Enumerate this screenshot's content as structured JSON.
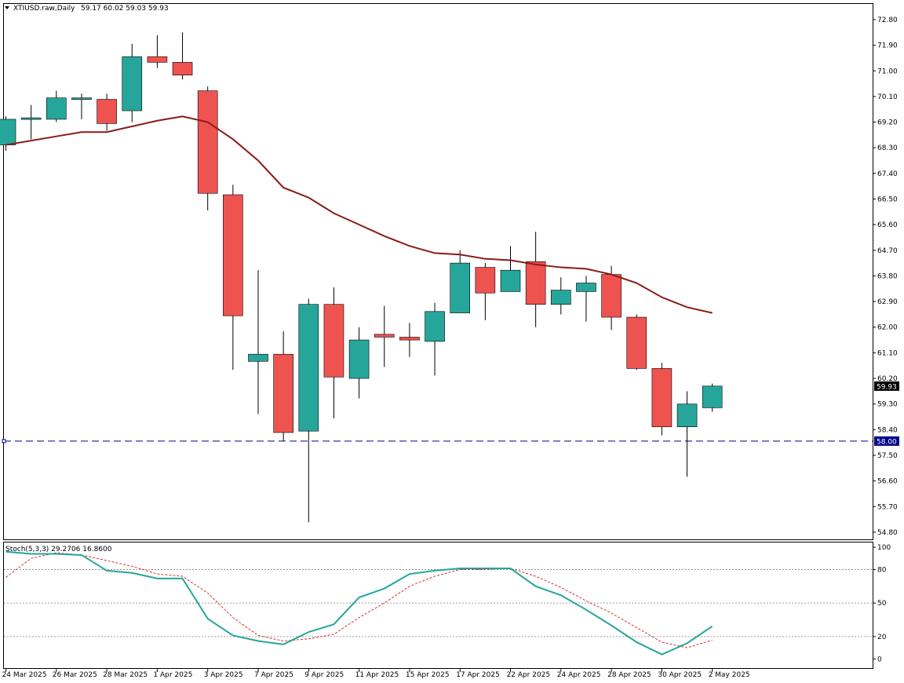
{
  "colors": {
    "background": "#ffffff",
    "up_candle": "#26a69a",
    "down_candle": "#ef5350",
    "wick": "#000000",
    "moving_average": "#8b1a1a",
    "level_line": "#00008b",
    "stoch_main": "#26a69a",
    "stoch_signal": "#d32f2f",
    "grid_level": "#808080",
    "axis": "#000000",
    "price_label_bg": "#000000",
    "level_label_bg": "#00008b"
  },
  "header": {
    "symbol_line": "XTIUSD.raw,Daily",
    "ohlc_line": "59.17 60.02 59.03 59.93",
    "menu_icon": "triangle-down-icon"
  },
  "stoch": {
    "label": "Stoch(5,3,3) 29.2706 16.8600"
  },
  "chart_data": [
    {
      "type": "candlestick",
      "symbol": "XTIUSD.raw",
      "timeframe": "Daily",
      "y_ticks": [
        "54.80",
        "55.70",
        "56.60",
        "57.50",
        "58.40",
        "59.30",
        "60.20",
        "61.10",
        "62.00",
        "62.90",
        "63.80",
        "64.70",
        "65.60",
        "66.50",
        "67.40",
        "68.30",
        "69.20",
        "70.10",
        "71.00",
        "71.90",
        "72.80"
      ],
      "ylim": [
        54.55,
        73.35
      ],
      "x_tick_labels": [
        "24 Mar 2025",
        "26 Mar 2025",
        "28 Mar 2025",
        "1 Apr 2025",
        "3 Apr 2025",
        "7 Apr 2025",
        "9 Apr 2025",
        "11 Apr 2025",
        "15 Apr 2025",
        "17 Apr 2025",
        "22 Apr 2025",
        "24 Apr 2025",
        "28 Apr 2025",
        "30 Apr 2025",
        "2 May 2025"
      ],
      "last_price_label": "59.93",
      "horizontal_level": 58.0,
      "horizontal_level_label": "58.00",
      "candles": [
        {
          "o": 68.4,
          "h": 69.4,
          "l": 68.2,
          "c": 69.3
        },
        {
          "o": 69.3,
          "h": 69.8,
          "l": 68.6,
          "c": 69.35
        },
        {
          "o": 69.3,
          "h": 70.3,
          "l": 69.2,
          "c": 70.05
        },
        {
          "o": 70.0,
          "h": 70.2,
          "l": 69.3,
          "c": 70.05
        },
        {
          "o": 70.0,
          "h": 70.2,
          "l": 68.9,
          "c": 69.15
        },
        {
          "o": 69.6,
          "h": 71.95,
          "l": 69.2,
          "c": 71.5
        },
        {
          "o": 71.5,
          "h": 72.25,
          "l": 71.1,
          "c": 71.3
        },
        {
          "o": 71.3,
          "h": 72.35,
          "l": 70.7,
          "c": 70.85
        },
        {
          "o": 70.3,
          "h": 70.45,
          "l": 66.1,
          "c": 66.7
        },
        {
          "o": 66.65,
          "h": 67.0,
          "l": 60.5,
          "c": 62.4
        },
        {
          "o": 60.8,
          "h": 64.0,
          "l": 58.95,
          "c": 61.05
        },
        {
          "o": 61.05,
          "h": 61.85,
          "l": 58.0,
          "c": 58.3
        },
        {
          "o": 58.35,
          "h": 63.0,
          "l": 55.15,
          "c": 62.8
        },
        {
          "o": 62.8,
          "h": 63.4,
          "l": 58.8,
          "c": 60.25
        },
        {
          "o": 60.2,
          "h": 62.0,
          "l": 59.5,
          "c": 61.55
        },
        {
          "o": 61.75,
          "h": 62.75,
          "l": 60.6,
          "c": 61.65
        },
        {
          "o": 61.65,
          "h": 62.15,
          "l": 60.95,
          "c": 61.55
        },
        {
          "o": 61.5,
          "h": 62.85,
          "l": 60.3,
          "c": 62.55
        },
        {
          "o": 62.5,
          "h": 64.7,
          "l": 62.5,
          "c": 64.25
        },
        {
          "o": 64.1,
          "h": 64.25,
          "l": 62.25,
          "c": 63.2
        },
        {
          "o": 63.25,
          "h": 64.85,
          "l": 63.25,
          "c": 64.0
        },
        {
          "o": 64.3,
          "h": 65.35,
          "l": 62.0,
          "c": 62.8
        },
        {
          "o": 62.8,
          "h": 63.75,
          "l": 62.45,
          "c": 63.3
        },
        {
          "o": 63.25,
          "h": 63.8,
          "l": 62.2,
          "c": 63.55
        },
        {
          "o": 63.85,
          "h": 64.15,
          "l": 61.9,
          "c": 62.35
        },
        {
          "o": 62.35,
          "h": 62.45,
          "l": 60.5,
          "c": 60.55
        },
        {
          "o": 60.55,
          "h": 60.75,
          "l": 58.2,
          "c": 58.5
        },
        {
          "o": 58.5,
          "h": 59.75,
          "l": 56.75,
          "c": 59.3
        },
        {
          "o": 59.17,
          "h": 60.02,
          "l": 59.03,
          "c": 59.93
        }
      ],
      "moving_average": [
        68.4,
        68.55,
        68.7,
        68.85,
        68.85,
        69.05,
        69.25,
        69.4,
        69.2,
        68.6,
        67.85,
        66.9,
        66.55,
        66.0,
        65.6,
        65.2,
        64.85,
        64.6,
        64.55,
        64.4,
        64.35,
        64.2,
        64.1,
        64.05,
        63.85,
        63.55,
        63.05,
        62.7,
        62.5
      ]
    },
    {
      "type": "line",
      "name": "Stoch(5,3,3)",
      "levels": [
        20,
        50,
        80
      ],
      "y_ticks": [
        "0",
        "20",
        "50",
        "80",
        "100"
      ],
      "ylim": [
        -4,
        100
      ],
      "main": [
        96,
        94,
        94,
        93,
        79,
        77,
        72,
        72,
        36,
        21,
        16,
        13,
        24,
        31,
        55,
        63,
        76,
        79,
        81,
        81,
        81,
        65,
        57,
        44,
        30,
        15,
        4,
        14,
        29.27
      ],
      "signal": [
        73,
        90,
        95,
        93,
        88,
        83,
        76,
        74,
        59,
        37,
        21,
        16,
        18,
        22,
        37,
        50,
        65,
        74,
        80,
        80,
        81,
        74,
        64,
        52,
        41,
        28,
        15,
        10,
        16.86
      ]
    }
  ]
}
